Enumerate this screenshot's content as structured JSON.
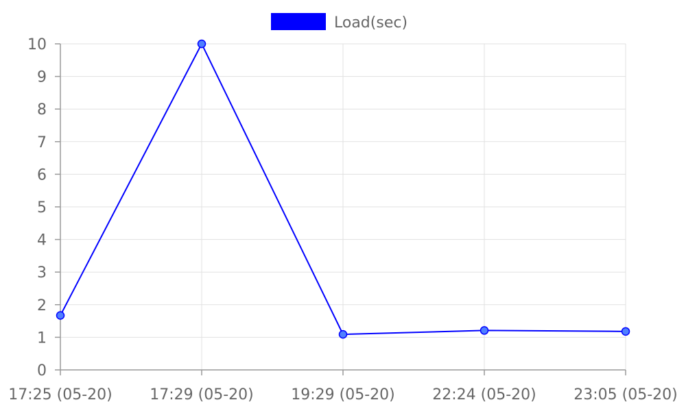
{
  "chart_data": {
    "type": "line",
    "categories": [
      "17:25 (05-20)",
      "17:29 (05-20)",
      "19:29 (05-20)",
      "22:24 (05-20)",
      "23:05 (05-20)"
    ],
    "series": [
      {
        "name": "Load(sec)",
        "values": [
          1.67,
          10.0,
          1.09,
          1.21,
          1.18
        ]
      }
    ],
    "ylim": [
      0,
      10
    ],
    "yticks": [
      0,
      1,
      2,
      3,
      4,
      5,
      6,
      7,
      8,
      9,
      10
    ],
    "grid": true,
    "legend_position": "top-center",
    "colors": {
      "line": "#0000ff",
      "point_fill": "#4f7fff",
      "point_stroke": "#0000ff",
      "legend_box": "#0000ff"
    }
  }
}
